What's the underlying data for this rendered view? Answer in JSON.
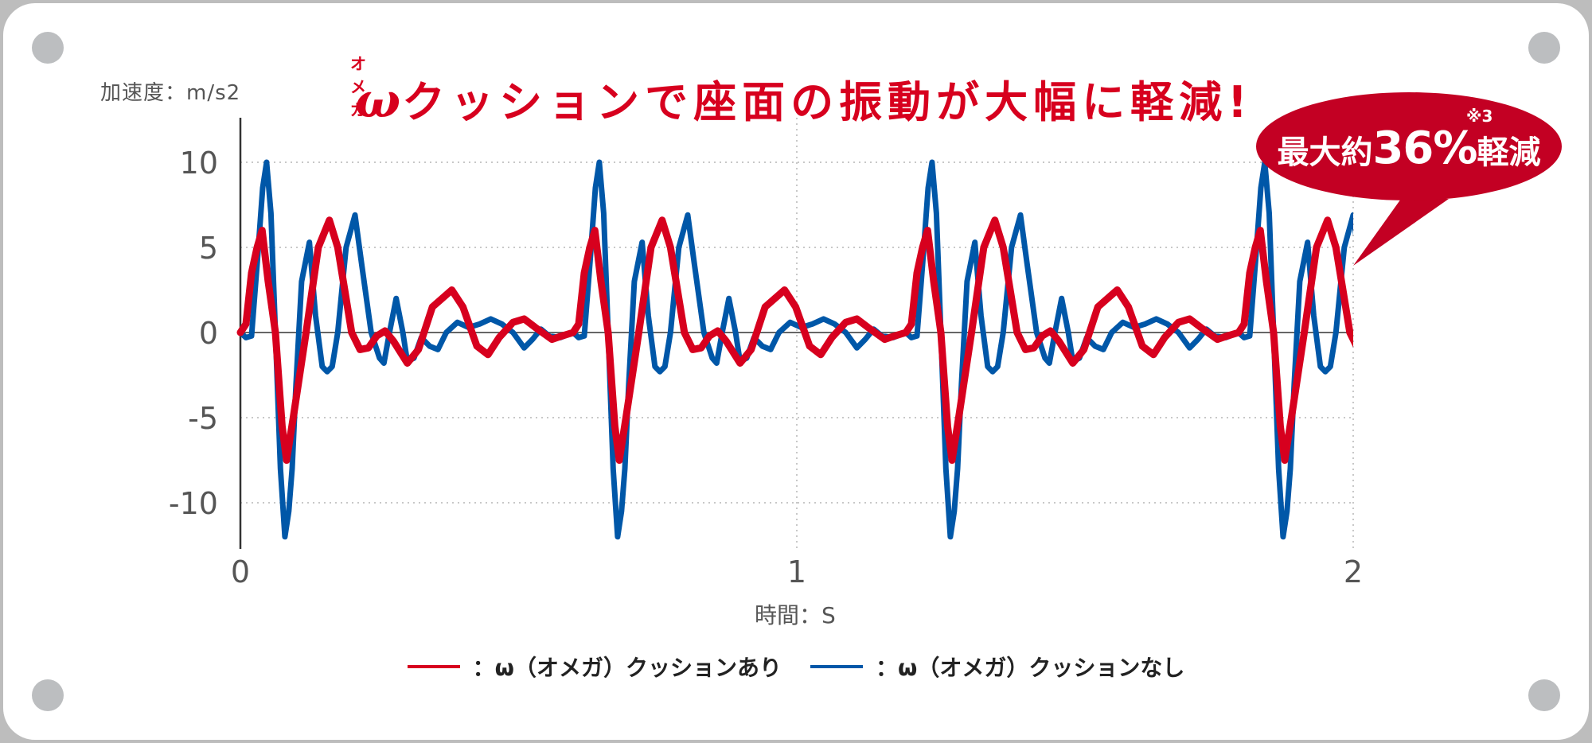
{
  "title": {
    "ruby": "オメガ",
    "omega": "ω",
    "text": "クッションで座面の振動が大幅に軽減!"
  },
  "callout": {
    "prefix": "最大約",
    "number": "36%",
    "suffix": "軽減",
    "note": "※3",
    "color": "#c30023"
  },
  "legend": [
    {
      "label": "：ω（オメガ）クッションあり",
      "color": "#d7001e"
    },
    {
      "label": "：ω（オメガ）クッションなし",
      "color": "#0057a8"
    }
  ],
  "chart_data": {
    "type": "line",
    "title": "ωクッションで座面の振動が大幅に軽減!",
    "xlabel": "時間：S",
    "ylabel": "加速度：m/s2",
    "xlim": [
      0,
      2
    ],
    "ylim": [
      -12.5,
      12.5
    ],
    "x_ticks": [
      0,
      1,
      2
    ],
    "y_ticks": [
      10,
      5,
      0,
      -5,
      -10
    ],
    "grid": "dotted",
    "legend_position": "bottom",
    "annotation": "最大約36%軽減 ※3",
    "period": 0.598,
    "cycle_starts": [
      0,
      0.598,
      1.196,
      1.794
    ],
    "series": [
      {
        "name": "ω（オメガ）クッションなし",
        "color": "#0057a8",
        "peak_max": 10,
        "peak_min": -12,
        "template": [
          [
            0,
            0
          ],
          [
            0.01,
            -0.3
          ],
          [
            0.02,
            -0.2
          ],
          [
            0.03,
            4
          ],
          [
            0.04,
            8.5
          ],
          [
            0.047,
            10
          ],
          [
            0.055,
            7
          ],
          [
            0.063,
            0
          ],
          [
            0.072,
            -8
          ],
          [
            0.08,
            -12
          ],
          [
            0.087,
            -10.5
          ],
          [
            0.093,
            -8
          ],
          [
            0.1,
            -3
          ],
          [
            0.11,
            3
          ],
          [
            0.124,
            5.3
          ],
          [
            0.135,
            1
          ],
          [
            0.147,
            -2
          ],
          [
            0.156,
            -2.3
          ],
          [
            0.165,
            -2
          ],
          [
            0.175,
            0
          ],
          [
            0.19,
            5
          ],
          [
            0.206,
            6.9
          ],
          [
            0.218,
            4
          ],
          [
            0.235,
            0
          ],
          [
            0.25,
            -1.5
          ],
          [
            0.258,
            -1.8
          ],
          [
            0.268,
            0
          ],
          [
            0.28,
            2
          ],
          [
            0.292,
            0
          ],
          [
            0.3,
            -1.7
          ],
          [
            0.312,
            -1.5
          ],
          [
            0.325,
            -0.3
          ],
          [
            0.34,
            -0.8
          ],
          [
            0.355,
            -1
          ],
          [
            0.37,
            0
          ],
          [
            0.39,
            0.6
          ],
          [
            0.41,
            0.3
          ],
          [
            0.43,
            0.5
          ],
          [
            0.45,
            0.8
          ],
          [
            0.47,
            0.5
          ],
          [
            0.49,
            0
          ],
          [
            0.51,
            -0.9
          ],
          [
            0.525,
            -0.4
          ],
          [
            0.54,
            0.2
          ],
          [
            0.555,
            -0.2
          ],
          [
            0.575,
            -0.3
          ],
          [
            0.598,
            0
          ]
        ]
      },
      {
        "name": "ω（オメガ）クッションあり",
        "color": "#d7001e",
        "peak_max": 6.6,
        "peak_min": -7.5,
        "template": [
          [
            0,
            0
          ],
          [
            0.01,
            0.5
          ],
          [
            0.02,
            3.5
          ],
          [
            0.03,
            5
          ],
          [
            0.039,
            6
          ],
          [
            0.05,
            3
          ],
          [
            0.063,
            0
          ],
          [
            0.075,
            -5.5
          ],
          [
            0.083,
            -7.5
          ],
          [
            0.095,
            -5
          ],
          [
            0.118,
            0
          ],
          [
            0.14,
            5
          ],
          [
            0.16,
            6.6
          ],
          [
            0.175,
            5
          ],
          [
            0.2,
            0
          ],
          [
            0.215,
            -1
          ],
          [
            0.23,
            -0.9
          ],
          [
            0.245,
            -0.2
          ],
          [
            0.26,
            0.1
          ],
          [
            0.275,
            -0.5
          ],
          [
            0.3,
            -1.8
          ],
          [
            0.32,
            -1
          ],
          [
            0.345,
            1.5
          ],
          [
            0.38,
            2.5
          ],
          [
            0.4,
            1.5
          ],
          [
            0.425,
            -0.8
          ],
          [
            0.445,
            -1.3
          ],
          [
            0.465,
            -0.3
          ],
          [
            0.49,
            0.6
          ],
          [
            0.51,
            0.8
          ],
          [
            0.53,
            0.3
          ],
          [
            0.56,
            -0.4
          ],
          [
            0.578,
            -0.2
          ],
          [
            0.598,
            0
          ]
        ]
      }
    ]
  }
}
